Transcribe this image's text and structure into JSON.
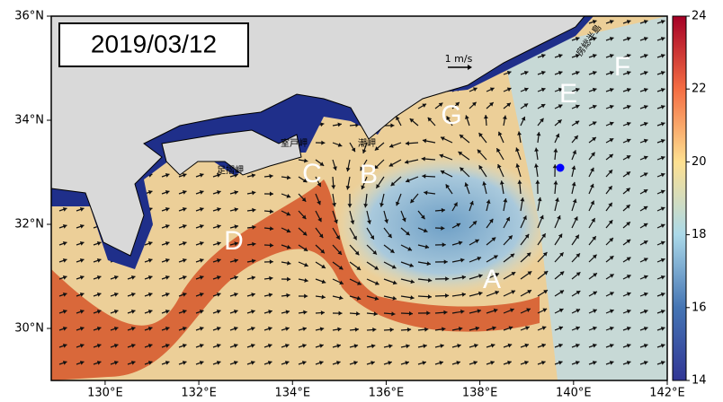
{
  "map": {
    "date": "2019/03/12",
    "xlim": [
      128.85,
      142
    ],
    "ylim": [
      29,
      36
    ],
    "xticks": [
      {
        "value": 130,
        "label": "130°E"
      },
      {
        "value": 132,
        "label": "132°E"
      },
      {
        "value": 134,
        "label": "134°E"
      },
      {
        "value": 136,
        "label": "136°E"
      },
      {
        "value": 138,
        "label": "138°E"
      },
      {
        "value": 140,
        "label": "140°E"
      },
      {
        "value": 142,
        "label": "142°E"
      }
    ],
    "yticks": [
      {
        "value": 30,
        "label": "30°N"
      },
      {
        "value": 32,
        "label": "32°N"
      },
      {
        "value": 34,
        "label": "34°N"
      },
      {
        "value": 36,
        "label": "36°N"
      }
    ],
    "colorbar": {
      "lim": [
        14,
        24
      ],
      "ticks": [
        14,
        16,
        18,
        20,
        22,
        24
      ]
    },
    "labels": [
      "A",
      "B",
      "C",
      "D",
      "E",
      "F",
      "G"
    ],
    "places": [
      "足摺岬",
      "室戸岬",
      "潮岬",
      "房総半島"
    ],
    "scale": "1 m/s"
  }
}
